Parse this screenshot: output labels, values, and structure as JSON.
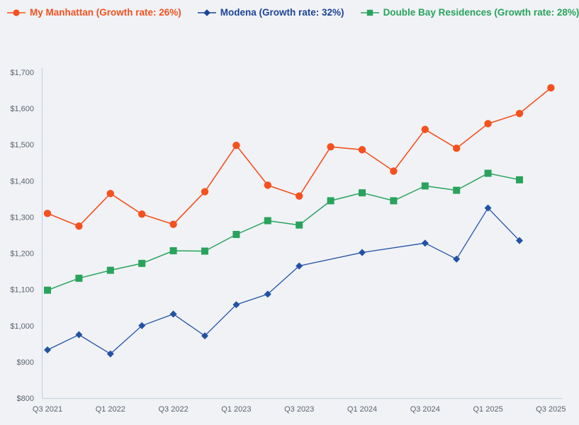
{
  "colors": {
    "background": "#f0f2f6",
    "axis_line": "#c9d2e6",
    "tick_text": "#5b6370"
  },
  "legend": {
    "items": [
      {
        "label": "My Manhattan (Growth rate: 26%)",
        "color": "#f4511e",
        "marker": "circle"
      },
      {
        "label": "Modena (Growth rate: 32%)",
        "color": "#1c4495",
        "marker": "diamond"
      },
      {
        "label": "Double Bay Residences (Growth rate: 28%)",
        "color": "#29a35c",
        "marker": "square"
      }
    ]
  },
  "chart_data": {
    "type": "line",
    "title": "",
    "xlabel": "",
    "ylabel": "",
    "grid": false,
    "legend_position": "top",
    "ylim": [
      800,
      1700
    ],
    "categories": [
      "Q3 2021",
      "Q4 2021",
      "Q1 2022",
      "Q2 2022",
      "Q3 2022",
      "Q4 2022",
      "Q1 2023",
      "Q2 2023",
      "Q3 2023",
      "Q4 2023",
      "Q1 2024",
      "Q2 2024",
      "Q3 2024",
      "Q4 2024",
      "Q1 2025",
      "Q2 2025",
      "Q3 2025"
    ],
    "x_tick_labels": [
      {
        "index": 0,
        "label": "Q3 2021"
      },
      {
        "index": 2,
        "label": "Q1 2022"
      },
      {
        "index": 4,
        "label": "Q3 2022"
      },
      {
        "index": 6,
        "label": "Q1 2023"
      },
      {
        "index": 8,
        "label": "Q3 2023"
      },
      {
        "index": 10,
        "label": "Q1 2024"
      },
      {
        "index": 12,
        "label": "Q3 2024"
      },
      {
        "index": 14,
        "label": "Q1 2025"
      },
      {
        "index": 16,
        "label": "Q3 2025"
      }
    ],
    "y_ticks": [
      {
        "value": 800,
        "label": "$800"
      },
      {
        "value": 900,
        "label": "$900"
      },
      {
        "value": 1000,
        "label": "$1,000"
      },
      {
        "value": 1100,
        "label": "$1,100"
      },
      {
        "value": 1200,
        "label": "$1,200"
      },
      {
        "value": 1300,
        "label": "$1,300"
      },
      {
        "value": 1400,
        "label": "$1,400"
      },
      {
        "value": 1500,
        "label": "$1,500"
      },
      {
        "value": 1600,
        "label": "$1,600"
      },
      {
        "value": 1700,
        "label": "$1,700"
      }
    ],
    "series": [
      {
        "name": "My Manhattan",
        "growth_rate": "26%",
        "color": "#f4511e",
        "marker": "circle",
        "line_width": 1.6,
        "points": [
          {
            "x": "Q3 2021",
            "y": 1310
          },
          {
            "x": "Q4 2021",
            "y": 1275
          },
          {
            "x": "Q1 2022",
            "y": 1365
          },
          {
            "x": "Q2 2022",
            "y": 1308
          },
          {
            "x": "Q3 2022",
            "y": 1280
          },
          {
            "x": "Q4 2022",
            "y": 1370
          },
          {
            "x": "Q1 2023",
            "y": 1498
          },
          {
            "x": "Q2 2023",
            "y": 1388
          },
          {
            "x": "Q3 2023",
            "y": 1358
          },
          {
            "x": "Q4 2023",
            "y": 1494
          },
          {
            "x": "Q1 2024",
            "y": 1486
          },
          {
            "x": "Q2 2024",
            "y": 1427
          },
          {
            "x": "Q3 2024",
            "y": 1542
          },
          {
            "x": "Q4 2024",
            "y": 1490
          },
          {
            "x": "Q1 2025",
            "y": 1558
          },
          {
            "x": "Q2 2025",
            "y": 1586
          },
          {
            "x": "Q3 2025",
            "y": 1657
          }
        ]
      },
      {
        "name": "Modena",
        "growth_rate": "32%",
        "color": "#2152a3",
        "marker": "diamond",
        "line_width": 1.3,
        "points": [
          {
            "x": "Q3 2021",
            "y": 933
          },
          {
            "x": "Q4 2021",
            "y": 975
          },
          {
            "x": "Q1 2022",
            "y": 922
          },
          {
            "x": "Q2 2022",
            "y": 1000
          },
          {
            "x": "Q3 2022",
            "y": 1032
          },
          {
            "x": "Q4 2022",
            "y": 972
          },
          {
            "x": "Q1 2023",
            "y": 1058
          },
          {
            "x": "Q2 2023",
            "y": 1087
          },
          {
            "x": "Q3 2023",
            "y": 1165
          },
          {
            "x": "Q1 2024",
            "y": 1202
          },
          {
            "x": "Q3 2024",
            "y": 1228
          },
          {
            "x": "Q4 2024",
            "y": 1184
          },
          {
            "x": "Q1 2025",
            "y": 1325
          },
          {
            "x": "Q2 2025",
            "y": 1235
          }
        ]
      },
      {
        "name": "Double Bay Residences",
        "growth_rate": "28%",
        "color": "#29a35c",
        "marker": "square",
        "line_width": 1.5,
        "points": [
          {
            "x": "Q3 2021",
            "y": 1098
          },
          {
            "x": "Q4 2021",
            "y": 1131
          },
          {
            "x": "Q1 2022",
            "y": 1153
          },
          {
            "x": "Q2 2022",
            "y": 1172
          },
          {
            "x": "Q3 2022",
            "y": 1207
          },
          {
            "x": "Q4 2022",
            "y": 1206
          },
          {
            "x": "Q1 2023",
            "y": 1252
          },
          {
            "x": "Q2 2023",
            "y": 1290
          },
          {
            "x": "Q3 2023",
            "y": 1278
          },
          {
            "x": "Q4 2023",
            "y": 1345
          },
          {
            "x": "Q1 2024",
            "y": 1367
          },
          {
            "x": "Q2 2024",
            "y": 1345
          },
          {
            "x": "Q3 2024",
            "y": 1386
          },
          {
            "x": "Q4 2024",
            "y": 1374
          },
          {
            "x": "Q1 2025",
            "y": 1421
          },
          {
            "x": "Q2 2025",
            "y": 1403
          }
        ]
      }
    ]
  }
}
